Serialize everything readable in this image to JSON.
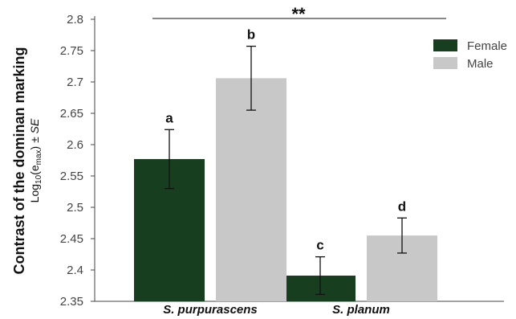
{
  "chart_data": {
    "type": "bar",
    "title": "",
    "ylabel": "Contrast of the dominan marking",
    "ylabel_sub": {
      "log": "Log",
      "base": "10",
      "open": "(e",
      "sub_max": "max",
      "close": ") ± ",
      "se": "SE"
    },
    "categories": [
      "S. purpurascens",
      "S. planum"
    ],
    "series": [
      {
        "name": "Female",
        "color": "#173f1f",
        "values": [
          2.577,
          2.391
        ],
        "errors": [
          0.047,
          0.03
        ],
        "labels": [
          "a",
          "c"
        ]
      },
      {
        "name": "Male",
        "color": "#c8c8c8",
        "values": [
          2.706,
          2.455
        ],
        "errors": [
          0.051,
          0.028
        ],
        "labels": [
          "b",
          "d"
        ]
      }
    ],
    "ylim": [
      2.35,
      2.8
    ],
    "yticks": [
      "2.35",
      "2.4",
      "2.45",
      "2.5",
      "2.55",
      "2.6",
      "2.65",
      "2.7",
      "2.75",
      "2.8"
    ],
    "significance": "**",
    "legend_position": "top-right",
    "grid": false
  }
}
